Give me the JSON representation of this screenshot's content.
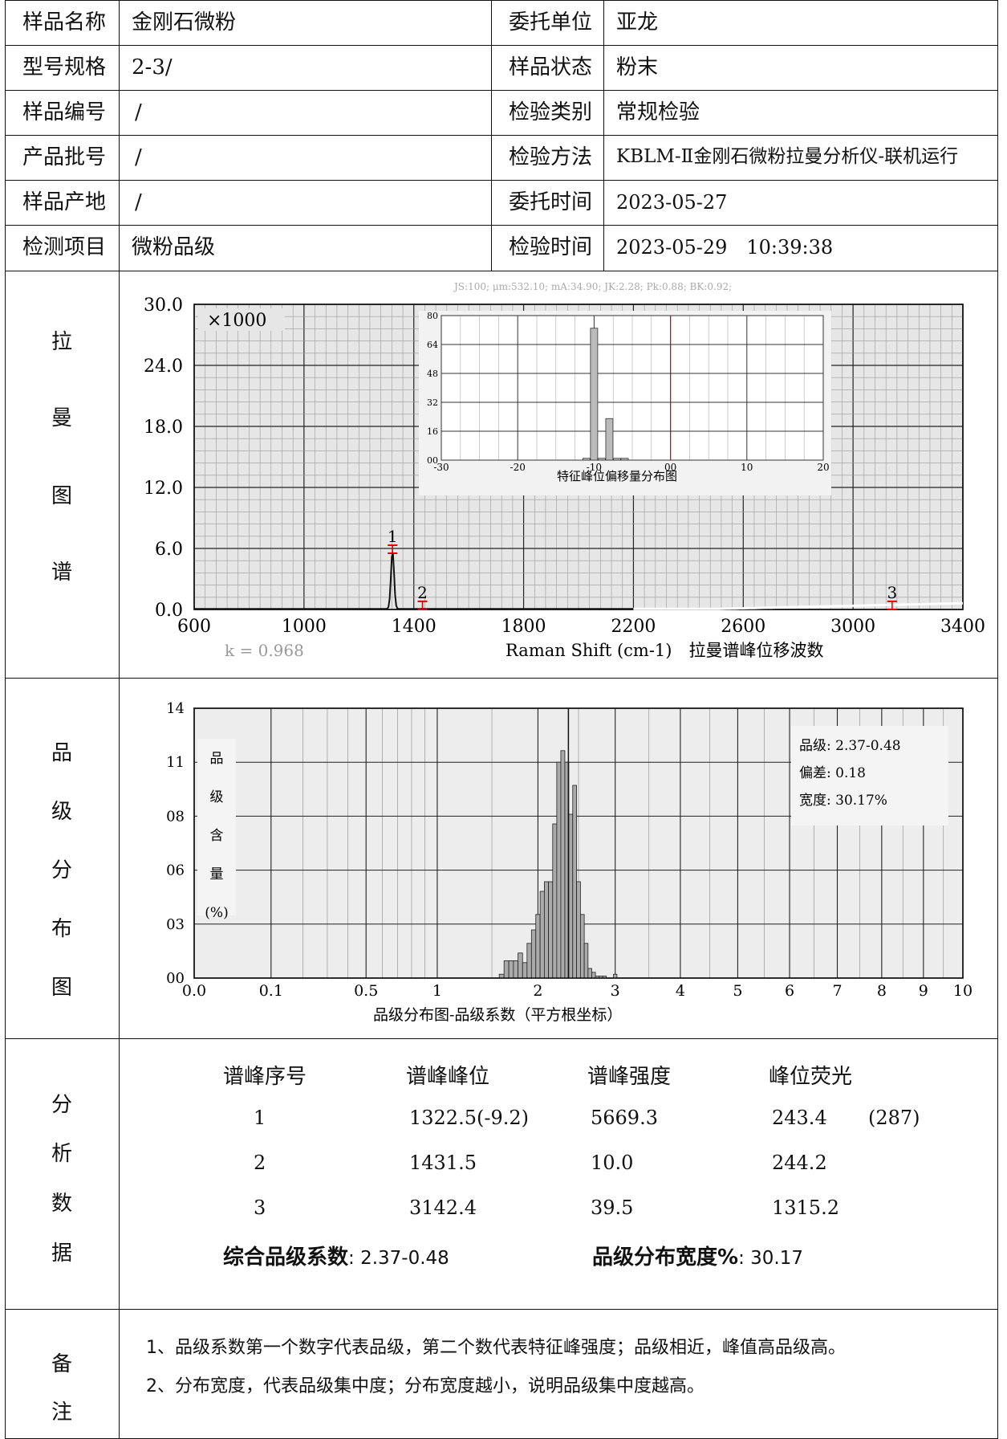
{
  "info": {
    "rows": [
      {
        "l1": "样品名称",
        "v1": "金刚石微粉",
        "l2": "委托单位",
        "v2": "亚龙"
      },
      {
        "l1": "型号规格",
        "v1": "2-3/",
        "l2": "样品状态",
        "v2": "粉末"
      },
      {
        "l1": "样品编号",
        "v1": "/",
        "l2": "检验类别",
        "v2": "常规检验"
      },
      {
        "l1": "产品批号",
        "v1": "/",
        "l2": "检验方法",
        "v2": "KBLM-Ⅱ金刚石微粉拉曼分析仪-联机运行"
      },
      {
        "l1": "样品产地",
        "v1": "/",
        "l2": "委托时间",
        "v2": "2023-05-27"
      },
      {
        "l1": "检测项目",
        "v1": "微粉品级",
        "l2": "检验时间",
        "v2": "2023-05-29　10:39:38"
      }
    ]
  },
  "sections": {
    "raman": [
      "拉",
      "曼",
      "图",
      "谱"
    ],
    "grade": [
      "品",
      "级",
      "分",
      "布",
      "图"
    ],
    "analysis": [
      "分",
      "析",
      "数",
      "据"
    ],
    "notes": [
      "备",
      "注"
    ]
  },
  "raman_chart": {
    "params": "JS:100; μm:532.10; mA:34.90; JK:2.28; Pk:0.88; BK:0.92;",
    "multiplier": "×1000",
    "k_value": "k = 0.968",
    "xlabel": "Raman Shift (cm-1)　拉曼谱峰位移波数",
    "yticks": [
      "30.0",
      "24.0",
      "18.0",
      "12.0",
      "6.0",
      "0.0"
    ],
    "xticks": [
      "600",
      "1000",
      "1400",
      "1800",
      "2200",
      "2600",
      "3000",
      "3400"
    ],
    "peak_labels": [
      "1",
      "2",
      "3"
    ],
    "inset": {
      "title": "特征峰位偏移量分布图",
      "yticks": [
        "80",
        "64",
        "48",
        "32",
        "16",
        "00"
      ],
      "xticks": [
        "-30",
        "-20",
        "-10",
        "00",
        "10",
        "20"
      ]
    }
  },
  "grade_chart": {
    "yticks": [
      "14",
      "11",
      "08",
      "06",
      "03",
      "00"
    ],
    "xticks": [
      "0.0",
      "0.1",
      "0.5",
      "1",
      "2",
      "3",
      "4",
      "5",
      "6",
      "7",
      "8",
      "9",
      "10"
    ],
    "xlabel": "品级分布图-品级系数（平方根坐标）",
    "ylabel_chars": [
      "品",
      "级",
      "含",
      "量",
      "(%)"
    ],
    "legend": [
      "品级: 2.37-0.48",
      "偏差: 0.18",
      "宽度: 30.17%"
    ]
  },
  "chart_data": [
    {
      "type": "line",
      "xlabel": "Raman Shift (cm-1)　拉曼谱峰位移波数",
      "ylabel": "",
      "xlim": [
        600,
        3400
      ],
      "ylim": [
        0,
        30
      ],
      "y_multiplier": 1000,
      "peaks": [
        {
          "label": "1",
          "x": 1322.5,
          "y": 5.67
        },
        {
          "label": "2",
          "x": 1431.5,
          "y": 0.01
        },
        {
          "label": "3",
          "x": 3142.4,
          "y": 0.04
        }
      ],
      "grid": true
    },
    {
      "type": "bar",
      "title": "特征峰位偏移量分布图",
      "xlim": [
        -30,
        20
      ],
      "ylim": [
        0,
        80
      ],
      "x": [
        -11,
        -10,
        -9,
        -8,
        -7,
        -6
      ],
      "values": [
        1,
        73,
        1,
        23,
        1,
        1
      ],
      "reference_line_x": 0,
      "grid": true
    },
    {
      "type": "bar",
      "xlabel": "品级分布图-品级系数（平方根坐标）",
      "ylabel": "品级含量(%)",
      "xlim": [
        0,
        10
      ],
      "ylim": [
        0,
        14
      ],
      "x": [
        1.6,
        1.65,
        1.7,
        1.75,
        1.8,
        1.85,
        1.9,
        1.95,
        2.0,
        2.05,
        2.1,
        2.15,
        2.2,
        2.25,
        2.3,
        2.35,
        2.4,
        2.45,
        2.5,
        2.55,
        2.6,
        2.65,
        2.7,
        2.75,
        2.8,
        2.85,
        3.0
      ],
      "values": [
        0.2,
        0.9,
        0.9,
        0.9,
        1.3,
        0.8,
        1.8,
        2.5,
        3.3,
        4.5,
        5.0,
        5.0,
        8.0,
        11.2,
        11.8,
        11.2,
        8.5,
        10.0,
        5.0,
        3.3,
        1.8,
        0.5,
        0.3,
        0.1,
        0.1,
        0.1,
        0.2
      ],
      "legend": [
        "品级: 2.37-0.48",
        "偏差: 0.18",
        "宽度: 30.17%"
      ],
      "grid": true
    }
  ],
  "analysis": {
    "headers": [
      "谱峰序号",
      "谱峰峰位",
      "谱峰强度",
      "峰位荧光"
    ],
    "rows": [
      {
        "n": "1",
        "pos": "1322.5(-9.2)",
        "int": "5669.3",
        "fl": "243.4",
        "extra": "(287)"
      },
      {
        "n": "2",
        "pos": "1431.5",
        "int": "10.0",
        "fl": "244.2",
        "extra": ""
      },
      {
        "n": "3",
        "pos": "3142.4",
        "int": "39.5",
        "fl": "1315.2",
        "extra": ""
      }
    ],
    "summary1_label": "综合品级系数",
    "summary1_value": ": 2.37-0.48",
    "summary2_label": "品级分布宽度%",
    "summary2_value": ": 30.17"
  },
  "notes": {
    "line1": "1、品级系数第一个数字代表品级，第二个数代表特征峰强度；品级相近，峰值高品级高。",
    "line2": "2、分布宽度，代表品级集中度；分布宽度越小，说明品级集中度越高。"
  }
}
